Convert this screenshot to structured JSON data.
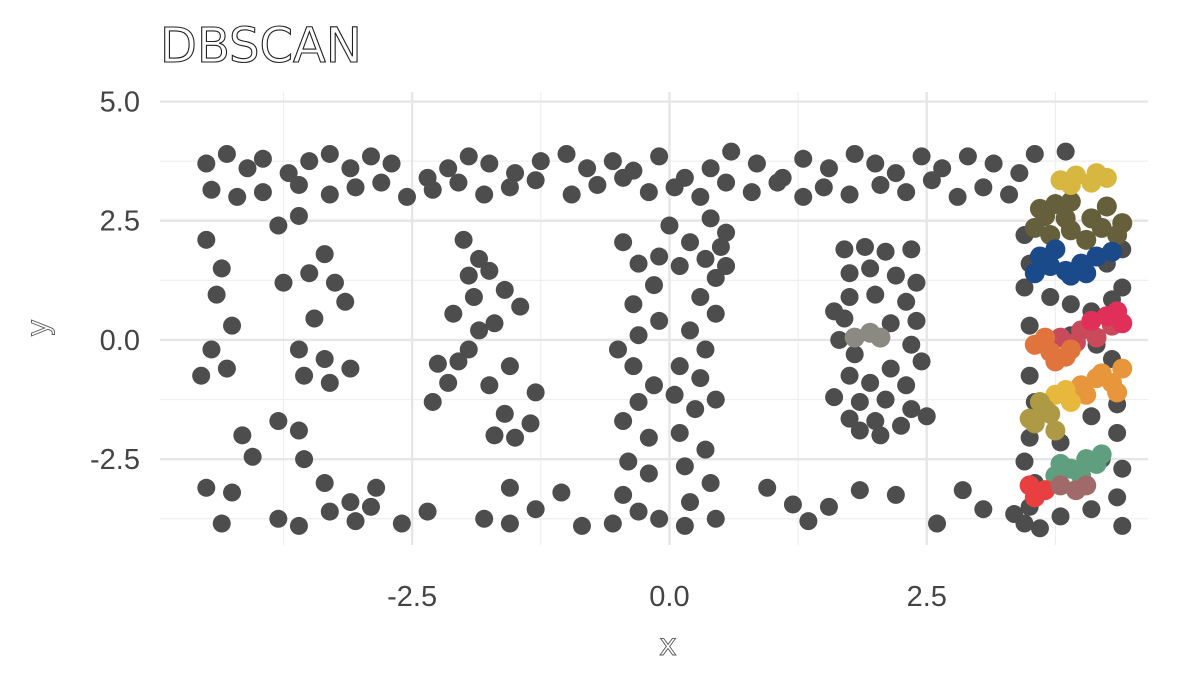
{
  "chart_data": {
    "type": "scatter",
    "title": "DBSCAN",
    "xlabel": "x",
    "ylabel": "y",
    "xlim": [
      -4.95,
      4.65
    ],
    "ylim": [
      -4.3,
      5.2
    ],
    "x_ticks": [
      -2.5,
      0.0,
      2.5
    ],
    "y_ticks": [
      5.0,
      2.5,
      0.0,
      -2.5
    ],
    "x_tick_labels": [
      "-2.5",
      "0.0",
      "2.5"
    ],
    "y_tick_labels": [
      "5.0",
      "2.5",
      "0.0",
      "-2.5"
    ],
    "grid": true,
    "legend": "none",
    "noise_color": "#4d4d4d",
    "noise_points": [
      [
        -4.5,
        3.7
      ],
      [
        -4.3,
        3.9
      ],
      [
        -4.1,
        3.6
      ],
      [
        -3.95,
        3.8
      ],
      [
        -3.7,
        3.5
      ],
      [
        -3.5,
        3.75
      ],
      [
        -3.3,
        3.9
      ],
      [
        -3.1,
        3.6
      ],
      [
        -2.9,
        3.85
      ],
      [
        -2.7,
        3.7
      ],
      [
        -2.35,
        3.4
      ],
      [
        -2.15,
        3.6
      ],
      [
        -1.95,
        3.85
      ],
      [
        -1.75,
        3.7
      ],
      [
        -1.5,
        3.5
      ],
      [
        -1.25,
        3.75
      ],
      [
        -1.0,
        3.9
      ],
      [
        -0.8,
        3.6
      ],
      [
        -0.55,
        3.75
      ],
      [
        -0.35,
        3.55
      ],
      [
        -0.1,
        3.85
      ],
      [
        0.15,
        3.4
      ],
      [
        0.4,
        3.6
      ],
      [
        0.6,
        3.95
      ],
      [
        0.85,
        3.7
      ],
      [
        1.1,
        3.4
      ],
      [
        1.3,
        3.8
      ],
      [
        1.55,
        3.6
      ],
      [
        1.8,
        3.9
      ],
      [
        2.0,
        3.7
      ],
      [
        2.2,
        3.5
      ],
      [
        2.45,
        3.85
      ],
      [
        2.65,
        3.6
      ],
      [
        2.9,
        3.85
      ],
      [
        3.15,
        3.7
      ],
      [
        3.4,
        3.5
      ],
      [
        3.55,
        3.9
      ],
      [
        3.85,
        3.95
      ],
      [
        -4.45,
        3.15
      ],
      [
        -4.2,
        3.0
      ],
      [
        -3.95,
        3.1
      ],
      [
        -3.6,
        3.25
      ],
      [
        -3.3,
        3.05
      ],
      [
        -3.05,
        3.2
      ],
      [
        -2.8,
        3.3
      ],
      [
        -2.55,
        3.0
      ],
      [
        -2.3,
        3.15
      ],
      [
        -2.05,
        3.3
      ],
      [
        -1.8,
        3.05
      ],
      [
        -1.55,
        3.2
      ],
      [
        -1.3,
        3.35
      ],
      [
        -0.95,
        3.05
      ],
      [
        -0.7,
        3.25
      ],
      [
        -0.45,
        3.4
      ],
      [
        -0.2,
        3.1
      ],
      [
        0.05,
        3.2
      ],
      [
        0.3,
        3.0
      ],
      [
        0.55,
        3.3
      ],
      [
        0.8,
        3.1
      ],
      [
        1.05,
        3.3
      ],
      [
        1.3,
        3.0
      ],
      [
        1.5,
        3.2
      ],
      [
        1.75,
        3.05
      ],
      [
        2.05,
        3.25
      ],
      [
        2.3,
        3.1
      ],
      [
        2.55,
        3.35
      ],
      [
        2.8,
        3.0
      ],
      [
        3.05,
        3.2
      ],
      [
        3.3,
        3.05
      ],
      [
        -4.5,
        2.1
      ],
      [
        -4.35,
        1.5
      ],
      [
        -4.4,
        0.95
      ],
      [
        -4.25,
        0.3
      ],
      [
        -4.45,
        -0.2
      ],
      [
        -4.55,
        -0.75
      ],
      [
        -4.3,
        -0.6
      ],
      [
        -4.15,
        -2.0
      ],
      [
        -4.05,
        -2.45
      ],
      [
        -4.5,
        -3.1
      ],
      [
        -4.25,
        -3.2
      ],
      [
        -4.35,
        -3.85
      ],
      [
        -3.8,
        -3.75
      ],
      [
        -3.6,
        -3.9
      ],
      [
        -3.3,
        -3.6
      ],
      [
        -3.05,
        -3.8
      ],
      [
        -2.9,
        -3.5
      ],
      [
        -2.6,
        -3.85
      ],
      [
        -2.35,
        -3.6
      ],
      [
        -3.8,
        2.4
      ],
      [
        -3.6,
        2.6
      ],
      [
        -3.75,
        1.2
      ],
      [
        -3.5,
        1.4
      ],
      [
        -3.35,
        1.8
      ],
      [
        -3.25,
        1.2
      ],
      [
        -3.15,
        0.8
      ],
      [
        -3.45,
        0.45
      ],
      [
        -3.6,
        -0.2
      ],
      [
        -3.35,
        -0.4
      ],
      [
        -3.55,
        -0.75
      ],
      [
        -3.3,
        -0.9
      ],
      [
        -3.1,
        -0.6
      ],
      [
        -3.8,
        -1.7
      ],
      [
        -3.6,
        -1.9
      ],
      [
        -3.55,
        -2.5
      ],
      [
        -3.35,
        -3.0
      ],
      [
        -3.1,
        -3.4
      ],
      [
        -2.85,
        -3.1
      ],
      [
        -2.3,
        -1.3
      ],
      [
        -2.15,
        -0.9
      ],
      [
        -2.05,
        -0.45
      ],
      [
        -2.25,
        -0.5
      ],
      [
        -1.95,
        -0.2
      ],
      [
        -1.85,
        0.2
      ],
      [
        -2.1,
        0.55
      ],
      [
        -1.9,
        0.9
      ],
      [
        -1.95,
        1.35
      ],
      [
        -1.85,
        1.7
      ],
      [
        -2.0,
        2.1
      ],
      [
        -1.75,
        1.45
      ],
      [
        -1.6,
        1.05
      ],
      [
        -1.45,
        0.7
      ],
      [
        -1.7,
        0.35
      ],
      [
        -1.55,
        -0.55
      ],
      [
        -1.75,
        -0.95
      ],
      [
        -1.6,
        -1.55
      ],
      [
        -1.3,
        -1.1
      ],
      [
        -1.5,
        -2.05
      ],
      [
        -1.7,
        -2.0
      ],
      [
        -1.35,
        -1.75
      ],
      [
        -1.55,
        -3.1
      ],
      [
        -1.8,
        -3.75
      ],
      [
        -1.55,
        -3.85
      ],
      [
        -1.3,
        -3.55
      ],
      [
        -1.05,
        -3.2
      ],
      [
        -0.85,
        -3.9
      ],
      [
        -0.45,
        2.05
      ],
      [
        -0.3,
        1.6
      ],
      [
        -0.15,
        1.15
      ],
      [
        -0.35,
        0.75
      ],
      [
        -0.1,
        0.4
      ],
      [
        -0.3,
        0.1
      ],
      [
        -0.5,
        -0.2
      ],
      [
        -0.35,
        -0.55
      ],
      [
        -0.15,
        -0.95
      ],
      [
        -0.3,
        -1.3
      ],
      [
        -0.45,
        -1.7
      ],
      [
        -0.2,
        -2.05
      ],
      [
        -0.4,
        -2.55
      ],
      [
        -0.2,
        -2.8
      ],
      [
        -0.45,
        -3.25
      ],
      [
        -0.3,
        -3.6
      ],
      [
        -0.55,
        -3.85
      ],
      [
        -0.1,
        -3.75
      ],
      [
        0.0,
        2.4
      ],
      [
        0.2,
        2.05
      ],
      [
        0.35,
        1.7
      ],
      [
        0.45,
        1.3
      ],
      [
        0.3,
        0.9
      ],
      [
        0.45,
        0.55
      ],
      [
        0.2,
        0.2
      ],
      [
        0.35,
        -0.2
      ],
      [
        0.1,
        -0.55
      ],
      [
        0.3,
        -0.8
      ],
      [
        0.05,
        -1.15
      ],
      [
        0.25,
        -1.45
      ],
      [
        0.45,
        -1.25
      ],
      [
        0.1,
        -1.95
      ],
      [
        0.35,
        -2.3
      ],
      [
        0.15,
        -2.65
      ],
      [
        0.4,
        -3.0
      ],
      [
        0.2,
        -3.4
      ],
      [
        0.45,
        -3.75
      ],
      [
        0.15,
        -3.9
      ],
      [
        0.55,
        2.25
      ],
      [
        0.5,
        1.95
      ],
      [
        0.4,
        2.55
      ],
      [
        0.55,
        1.55
      ],
      [
        -0.1,
        1.75
      ],
      [
        0.1,
        1.55
      ],
      [
        1.7,
        1.9
      ],
      [
        1.9,
        1.95
      ],
      [
        2.1,
        1.85
      ],
      [
        2.35,
        1.9
      ],
      [
        1.75,
        1.4
      ],
      [
        1.95,
        1.5
      ],
      [
        2.2,
        1.35
      ],
      [
        2.4,
        1.2
      ],
      [
        1.75,
        0.9
      ],
      [
        2.0,
        0.95
      ],
      [
        2.3,
        0.8
      ],
      [
        2.4,
        0.4
      ],
      [
        2.15,
        0.35
      ],
      [
        1.7,
        0.45
      ],
      [
        1.65,
        0.0
      ],
      [
        1.8,
        -0.3
      ],
      [
        2.35,
        -0.1
      ],
      [
        2.45,
        -0.45
      ],
      [
        2.15,
        -0.6
      ],
      [
        1.75,
        -0.75
      ],
      [
        1.95,
        -0.9
      ],
      [
        2.3,
        -0.95
      ],
      [
        1.85,
        -1.3
      ],
      [
        2.1,
        -1.25
      ],
      [
        2.35,
        -1.45
      ],
      [
        1.75,
        -1.65
      ],
      [
        2.0,
        -1.7
      ],
      [
        2.25,
        -1.8
      ],
      [
        1.85,
        -1.9
      ],
      [
        2.05,
        -2.0
      ],
      [
        2.5,
        -1.6
      ],
      [
        1.6,
        -1.2
      ],
      [
        1.6,
        0.6
      ],
      [
        0.95,
        -3.1
      ],
      [
        1.2,
        -3.45
      ],
      [
        1.35,
        -3.8
      ],
      [
        1.55,
        -3.5
      ],
      [
        1.85,
        -3.15
      ],
      [
        2.2,
        -3.25
      ],
      [
        2.6,
        -3.85
      ],
      [
        2.85,
        -3.15
      ],
      [
        3.05,
        -3.55
      ],
      [
        3.35,
        -3.65
      ],
      [
        3.45,
        -3.85
      ],
      [
        3.6,
        -3.95
      ],
      [
        3.45,
        2.2
      ],
      [
        3.5,
        1.6
      ],
      [
        3.45,
        1.1
      ],
      [
        3.5,
        0.3
      ],
      [
        3.5,
        -0.75
      ],
      [
        3.55,
        -1.3
      ],
      [
        3.5,
        -2.05
      ],
      [
        3.45,
        -2.55
      ],
      [
        3.55,
        -3.0
      ],
      [
        3.5,
        -3.5
      ],
      [
        3.7,
        0.9
      ],
      [
        3.9,
        0.75
      ],
      [
        4.1,
        0.6
      ],
      [
        4.3,
        0.85
      ],
      [
        4.4,
        1.1
      ],
      [
        4.25,
        1.6
      ],
      [
        4.4,
        1.9
      ],
      [
        3.9,
        0.1
      ],
      [
        4.15,
        -0.1
      ],
      [
        4.3,
        -0.4
      ],
      [
        4.35,
        -1.35
      ],
      [
        4.1,
        -1.6
      ],
      [
        4.35,
        -1.95
      ],
      [
        3.8,
        -2.15
      ],
      [
        4.2,
        -2.5
      ],
      [
        4.4,
        -2.7
      ],
      [
        4.35,
        -3.3
      ],
      [
        4.1,
        -3.55
      ],
      [
        3.8,
        -3.7
      ],
      [
        4.4,
        -3.9
      ]
    ],
    "clusters": [
      {
        "color": "#665f3c",
        "points": [
          [
            3.6,
            2.75
          ],
          [
            3.75,
            2.85
          ],
          [
            3.9,
            2.9
          ],
          [
            4.1,
            2.55
          ],
          [
            4.25,
            2.8
          ],
          [
            4.4,
            2.45
          ],
          [
            3.55,
            2.35
          ],
          [
            3.7,
            2.2
          ],
          [
            3.9,
            2.3
          ],
          [
            4.05,
            2.1
          ],
          [
            4.2,
            2.35
          ],
          [
            3.65,
            2.6
          ],
          [
            4.35,
            2.2
          ],
          [
            3.85,
            2.55
          ]
        ]
      },
      {
        "color": "#d7b740",
        "points": [
          [
            3.8,
            3.35
          ],
          [
            3.95,
            3.45
          ],
          [
            4.1,
            3.3
          ],
          [
            4.25,
            3.4
          ],
          [
            3.9,
            3.25
          ],
          [
            4.15,
            3.5
          ]
        ]
      },
      {
        "color": "#1a4a8a",
        "points": [
          [
            3.55,
            1.4
          ],
          [
            3.7,
            1.55
          ],
          [
            3.85,
            1.45
          ],
          [
            4.0,
            1.6
          ],
          [
            4.15,
            1.75
          ],
          [
            3.6,
            1.75
          ],
          [
            3.75,
            1.9
          ],
          [
            3.9,
            1.35
          ],
          [
            4.3,
            1.85
          ],
          [
            4.05,
            1.4
          ]
        ]
      },
      {
        "color": "#c94a5a",
        "points": [
          [
            3.8,
            0.05
          ],
          [
            4.0,
            0.2
          ],
          [
            4.15,
            0.05
          ],
          [
            4.3,
            0.3
          ],
          [
            3.95,
            -0.05
          ]
        ]
      },
      {
        "color": "#e0305a",
        "points": [
          [
            4.25,
            0.5
          ],
          [
            4.4,
            0.35
          ],
          [
            4.1,
            0.4
          ],
          [
            4.35,
            0.6
          ]
        ]
      },
      {
        "color": "#e0743c",
        "points": [
          [
            3.55,
            -0.1
          ],
          [
            3.7,
            -0.25
          ],
          [
            3.85,
            -0.35
          ],
          [
            3.65,
            0.05
          ],
          [
            3.9,
            -0.2
          ],
          [
            3.75,
            -0.45
          ]
        ]
      },
      {
        "color": "#e8963c",
        "points": [
          [
            4.0,
            -0.95
          ],
          [
            4.15,
            -0.8
          ],
          [
            4.3,
            -0.9
          ],
          [
            4.4,
            -0.6
          ],
          [
            4.05,
            -1.15
          ],
          [
            4.35,
            -1.1
          ],
          [
            4.2,
            -0.7
          ]
        ]
      },
      {
        "color": "#e8b83c",
        "points": [
          [
            3.75,
            -1.15
          ],
          [
            3.9,
            -1.3
          ],
          [
            3.85,
            -1.05
          ]
        ]
      },
      {
        "color": "#ae9a45",
        "points": [
          [
            3.55,
            -1.75
          ],
          [
            3.7,
            -1.55
          ],
          [
            3.6,
            -1.3
          ],
          [
            3.75,
            -1.9
          ],
          [
            3.5,
            -1.65
          ],
          [
            3.65,
            -1.45
          ]
        ]
      },
      {
        "color": "#5f9e7e",
        "points": [
          [
            3.75,
            -2.85
          ],
          [
            3.9,
            -2.7
          ],
          [
            4.05,
            -2.5
          ],
          [
            4.2,
            -2.4
          ],
          [
            3.8,
            -2.6
          ],
          [
            4.0,
            -2.85
          ],
          [
            4.15,
            -2.6
          ]
        ]
      },
      {
        "color": "#e84040",
        "points": [
          [
            3.5,
            -3.05
          ],
          [
            3.55,
            -3.3
          ],
          [
            3.65,
            -3.15
          ]
        ]
      },
      {
        "color": "#a06a6a",
        "points": [
          [
            3.8,
            -3.05
          ],
          [
            3.95,
            -3.15
          ],
          [
            4.05,
            -3.05
          ]
        ]
      },
      {
        "color": "#8a8a82",
        "points": [
          [
            1.8,
            0.05
          ],
          [
            1.95,
            0.15
          ],
          [
            2.05,
            0.05
          ]
        ]
      }
    ]
  }
}
